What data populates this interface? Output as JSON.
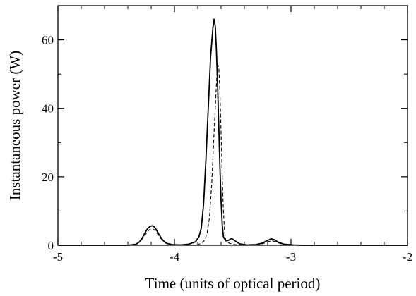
{
  "chart_data": {
    "type": "line",
    "title": "",
    "xlabel": "Time (units of optical period)",
    "ylabel": "Instantaneous power (W)",
    "xlim": [
      -5,
      -2
    ],
    "ylim": [
      0,
      70
    ],
    "x_ticks": [
      "-5",
      "-4",
      "-3",
      "-2"
    ],
    "y_ticks": [
      "0",
      "20",
      "40",
      "60"
    ],
    "grid": false,
    "legend": "none",
    "series": [
      {
        "style": "solid",
        "color": "#000000",
        "points": [
          [
            -5.0,
            0.0
          ],
          [
            -4.4,
            0.0
          ],
          [
            -4.33,
            0.3
          ],
          [
            -4.3,
            1.0
          ],
          [
            -4.27,
            2.5
          ],
          [
            -4.25,
            3.8
          ],
          [
            -4.23,
            4.9
          ],
          [
            -4.21,
            5.5
          ],
          [
            -4.19,
            5.7
          ],
          [
            -4.17,
            5.3
          ],
          [
            -4.15,
            4.2
          ],
          [
            -4.13,
            3.0
          ],
          [
            -4.1,
            1.5
          ],
          [
            -4.07,
            0.6
          ],
          [
            -4.02,
            0.2
          ],
          [
            -3.95,
            0.1
          ],
          [
            -3.88,
            0.3
          ],
          [
            -3.82,
            1.0
          ],
          [
            -3.79,
            2.5
          ],
          [
            -3.77,
            5.0
          ],
          [
            -3.75,
            12.0
          ],
          [
            -3.73,
            25.0
          ],
          [
            -3.71,
            40.0
          ],
          [
            -3.69,
            55.0
          ],
          [
            -3.67,
            63.5
          ],
          [
            -3.66,
            66.0
          ],
          [
            -3.65,
            64.0
          ],
          [
            -3.64,
            57.0
          ],
          [
            -3.63,
            47.0
          ],
          [
            -3.62,
            35.0
          ],
          [
            -3.61,
            23.0
          ],
          [
            -3.6,
            13.0
          ],
          [
            -3.59,
            6.0
          ],
          [
            -3.58,
            2.5
          ],
          [
            -3.56,
            1.3
          ],
          [
            -3.54,
            1.4
          ],
          [
            -3.51,
            2.0
          ],
          [
            -3.48,
            1.3
          ],
          [
            -3.44,
            0.4
          ],
          [
            -3.38,
            0.1
          ],
          [
            -3.3,
            0.2
          ],
          [
            -3.25,
            0.6
          ],
          [
            -3.2,
            1.4
          ],
          [
            -3.17,
            1.9
          ],
          [
            -3.14,
            1.6
          ],
          [
            -3.11,
            0.9
          ],
          [
            -3.06,
            0.3
          ],
          [
            -2.98,
            0.1
          ],
          [
            -2.9,
            0.0
          ],
          [
            -2.0,
            0.0
          ]
        ]
      },
      {
        "style": "dashed",
        "color": "#000000",
        "points": [
          [
            -5.0,
            0.0
          ],
          [
            -4.38,
            0.0
          ],
          [
            -4.32,
            0.4
          ],
          [
            -4.29,
            1.2
          ],
          [
            -4.26,
            2.6
          ],
          [
            -4.24,
            3.6
          ],
          [
            -4.22,
            4.4
          ],
          [
            -4.2,
            4.8
          ],
          [
            -4.18,
            4.7
          ],
          [
            -4.16,
            4.1
          ],
          [
            -4.14,
            3.1
          ],
          [
            -4.12,
            2.1
          ],
          [
            -4.09,
            1.0
          ],
          [
            -4.05,
            0.3
          ],
          [
            -3.98,
            0.0
          ],
          [
            -3.85,
            0.0
          ],
          [
            -3.8,
            0.2
          ],
          [
            -3.77,
            0.6
          ],
          [
            -3.74,
            1.5
          ],
          [
            -3.72,
            3.5
          ],
          [
            -3.7,
            8.0
          ],
          [
            -3.68,
            18.0
          ],
          [
            -3.66,
            33.0
          ],
          [
            -3.64,
            47.0
          ],
          [
            -3.63,
            53.0
          ],
          [
            -3.62,
            52.0
          ],
          [
            -3.61,
            45.0
          ],
          [
            -3.6,
            33.0
          ],
          [
            -3.59,
            20.0
          ],
          [
            -3.58,
            10.0
          ],
          [
            -3.57,
            4.0
          ],
          [
            -3.56,
            1.5
          ],
          [
            -3.53,
            0.6
          ],
          [
            -3.48,
            0.2
          ],
          [
            -3.4,
            0.0
          ],
          [
            -3.3,
            0.1
          ],
          [
            -3.24,
            0.5
          ],
          [
            -3.19,
            1.1
          ],
          [
            -3.16,
            1.3
          ],
          [
            -3.13,
            1.0
          ],
          [
            -3.09,
            0.5
          ],
          [
            -3.03,
            0.1
          ],
          [
            -2.95,
            0.0
          ],
          [
            -2.0,
            0.0
          ]
        ]
      }
    ]
  }
}
